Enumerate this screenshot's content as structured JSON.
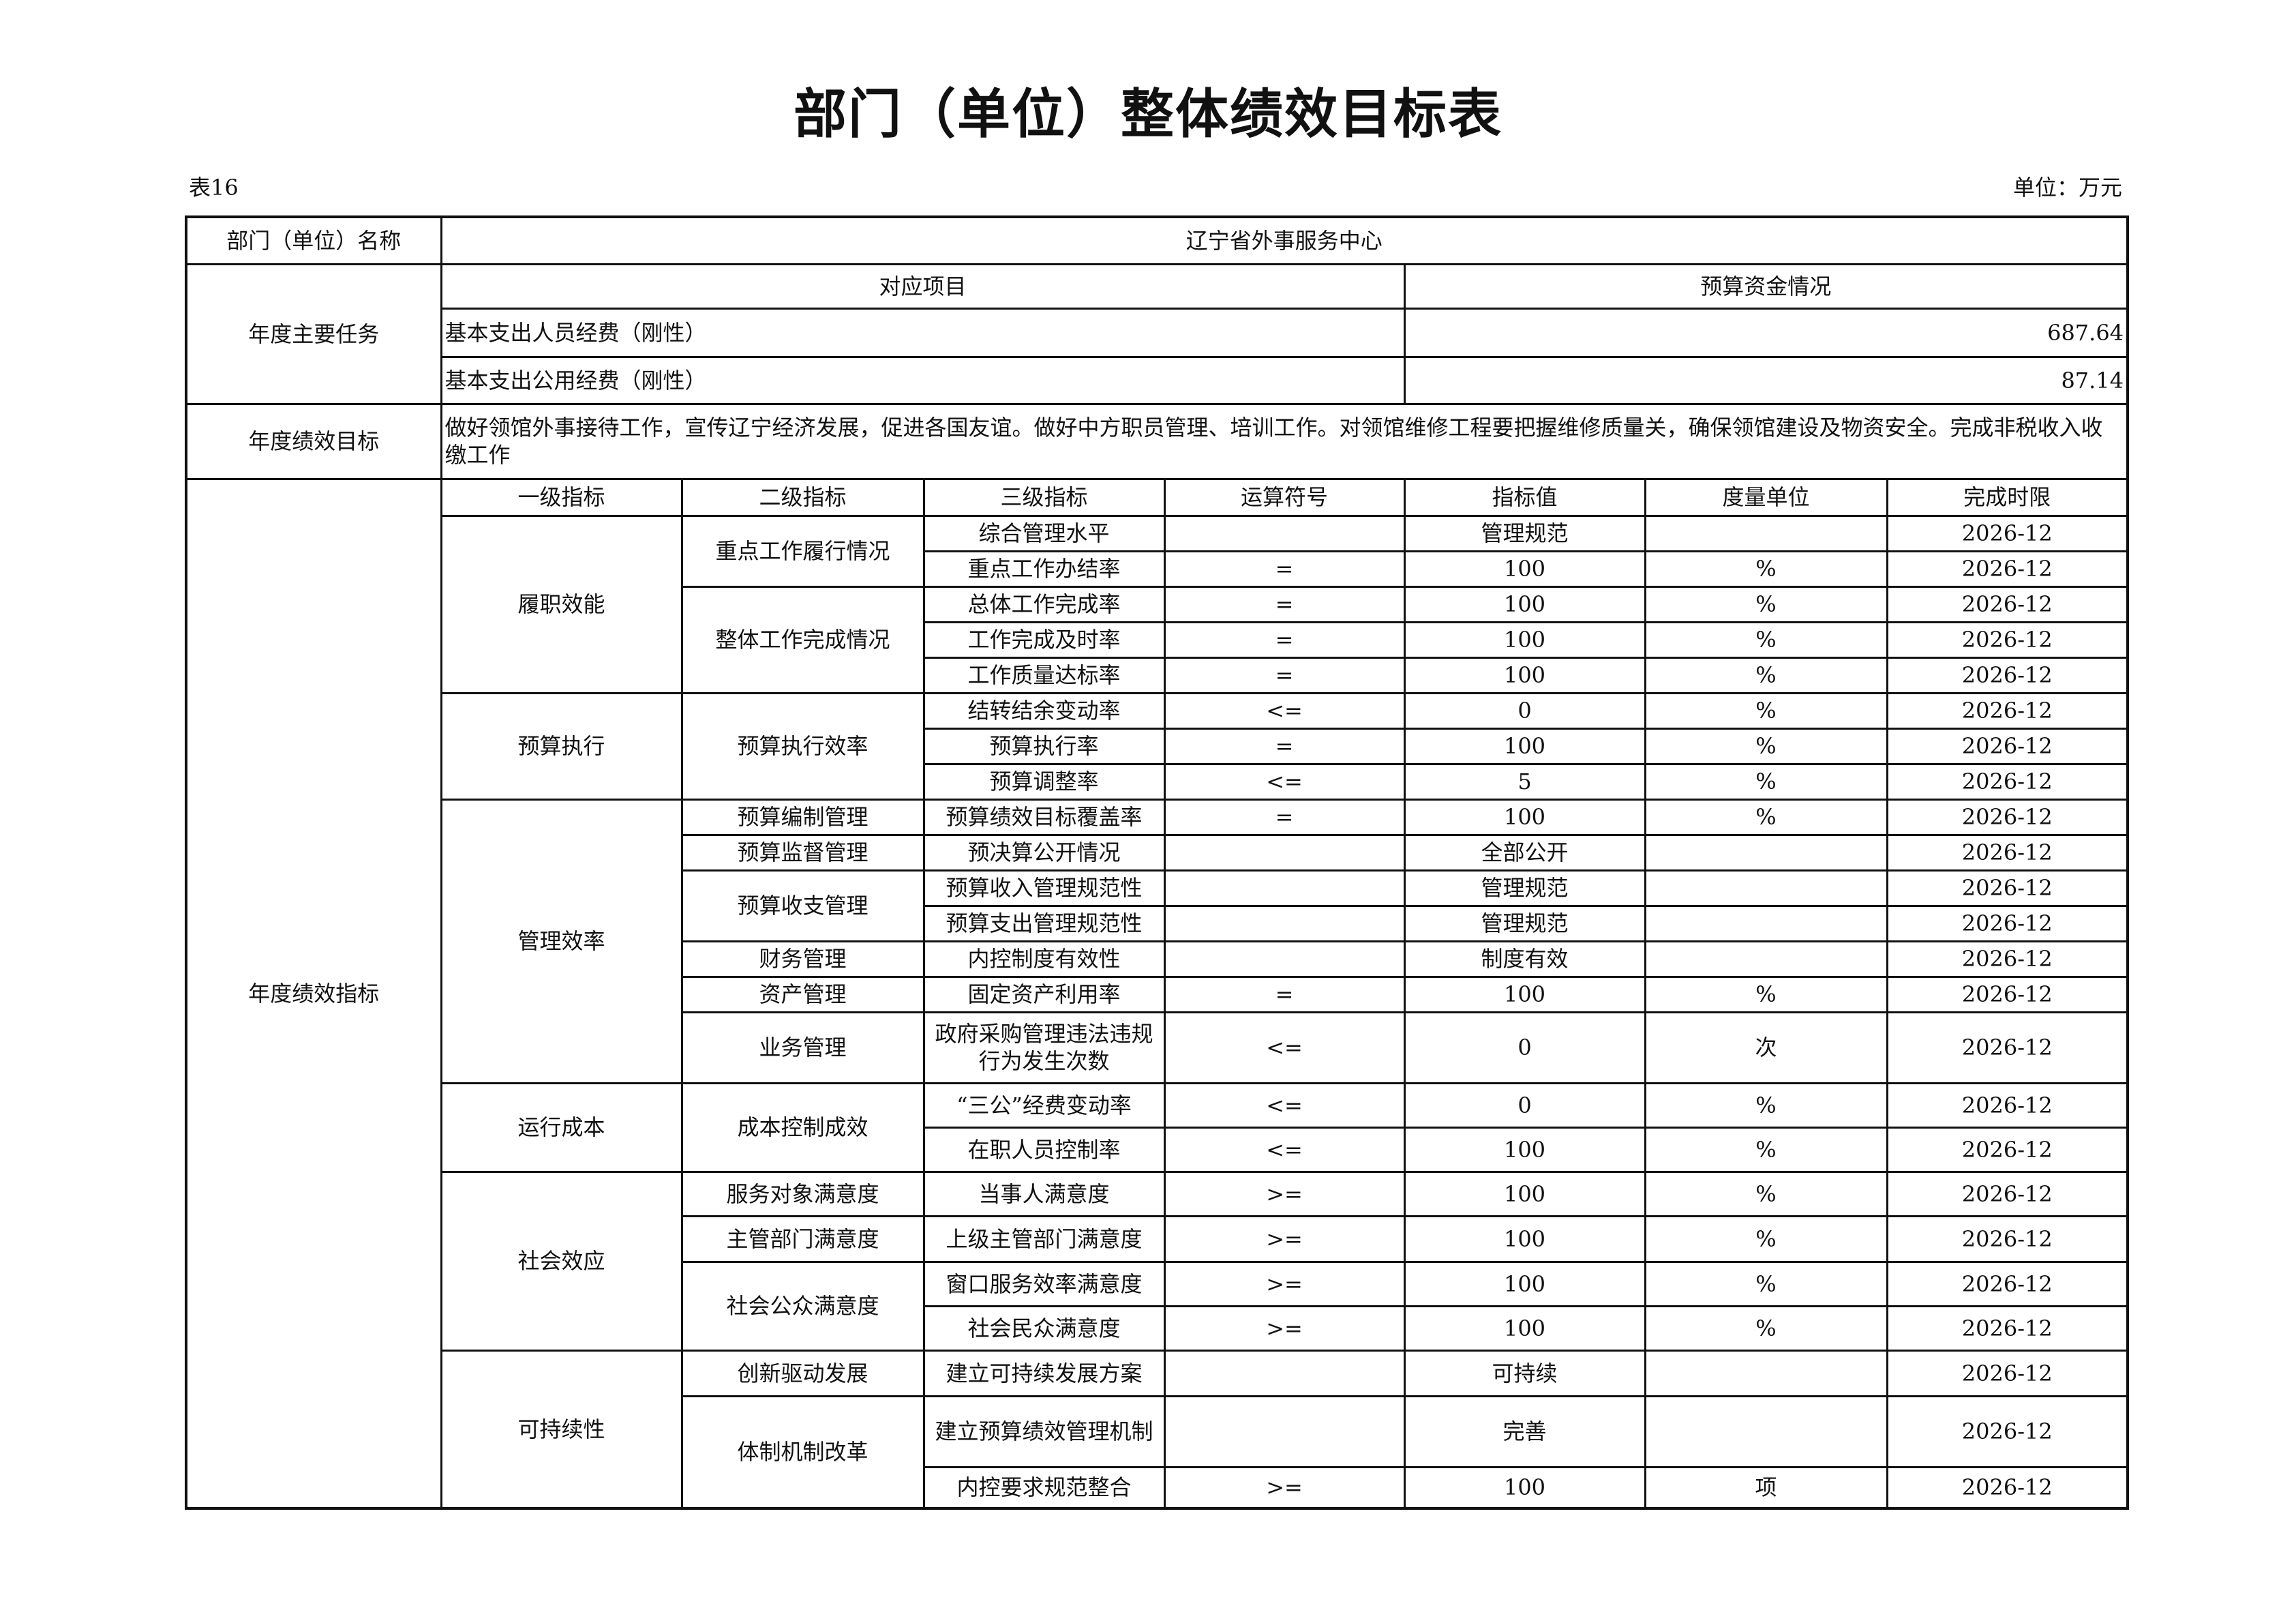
{
  "title": "部门（单位）整体绩效目标表",
  "table_no": "表16",
  "unit_label": "单位：万元",
  "dept": {
    "label": "部门（单位）名称",
    "value": "辽宁省外事服务中心"
  },
  "tasks": {
    "label": "年度主要任务",
    "col_project": "对应项目",
    "col_budget": "预算资金情况",
    "items": [
      {
        "project": "基本支出人员经费（刚性）",
        "budget": "687.64"
      },
      {
        "project": "基本支出公用经费（刚性）",
        "budget": "87.14"
      }
    ]
  },
  "goal": {
    "label": "年度绩效目标",
    "text": "做好领馆外事接待工作，宣传辽宁经济发展，促进各国友谊。做好中方职员管理、培训工作。对领馆维修工程要把握维修质量关，确保领馆建设及物资安全。完成非税收入收缴工作"
  },
  "indicators": {
    "label": "年度绩效指标",
    "headers": [
      "一级指标",
      "二级指标",
      "三级指标",
      "运算符号",
      "指标值",
      "度量单位",
      "完成时限"
    ],
    "groups": [
      {
        "name": "履职效能",
        "children": [
          {
            "name": "重点工作履行情况",
            "items": [
              {
                "name": "综合管理水平",
                "op": "",
                "value": "管理规范",
                "unit": "",
                "deadline": "2026-12"
              },
              {
                "name": "重点工作办结率",
                "op": "=",
                "value": "100",
                "unit": "%",
                "deadline": "2026-12"
              }
            ]
          },
          {
            "name": "整体工作完成情况",
            "items": [
              {
                "name": "总体工作完成率",
                "op": "=",
                "value": "100",
                "unit": "%",
                "deadline": "2026-12"
              },
              {
                "name": "工作完成及时率",
                "op": "=",
                "value": "100",
                "unit": "%",
                "deadline": "2026-12"
              },
              {
                "name": "工作质量达标率",
                "op": "=",
                "value": "100",
                "unit": "%",
                "deadline": "2026-12"
              }
            ]
          }
        ]
      },
      {
        "name": "预算执行",
        "children": [
          {
            "name": "预算执行效率",
            "items": [
              {
                "name": "结转结余变动率",
                "op": "<=",
                "value": "0",
                "unit": "%",
                "deadline": "2026-12"
              },
              {
                "name": "预算执行率",
                "op": "=",
                "value": "100",
                "unit": "%",
                "deadline": "2026-12"
              },
              {
                "name": "预算调整率",
                "op": "<=",
                "value": "5",
                "unit": "%",
                "deadline": "2026-12"
              }
            ]
          }
        ]
      },
      {
        "name": "管理效率",
        "children": [
          {
            "name": "预算编制管理",
            "items": [
              {
                "name": "预算绩效目标覆盖率",
                "op": "=",
                "value": "100",
                "unit": "%",
                "deadline": "2026-12"
              }
            ]
          },
          {
            "name": "预算监督管理",
            "items": [
              {
                "name": "预决算公开情况",
                "op": "",
                "value": "全部公开",
                "unit": "",
                "deadline": "2026-12"
              }
            ]
          },
          {
            "name": "预算收支管理",
            "items": [
              {
                "name": "预算收入管理规范性",
                "op": "",
                "value": "管理规范",
                "unit": "",
                "deadline": "2026-12"
              },
              {
                "name": "预算支出管理规范性",
                "op": "",
                "value": "管理规范",
                "unit": "",
                "deadline": "2026-12"
              }
            ]
          },
          {
            "name": "财务管理",
            "items": [
              {
                "name": "内控制度有效性",
                "op": "",
                "value": "制度有效",
                "unit": "",
                "deadline": "2026-12"
              }
            ]
          },
          {
            "name": "资产管理",
            "items": [
              {
                "name": "固定资产利用率",
                "op": "=",
                "value": "100",
                "unit": "%",
                "deadline": "2026-12"
              }
            ]
          },
          {
            "name": "业务管理",
            "items": [
              {
                "name": "政府采购管理违法违规行为发生次数",
                "op": "<=",
                "value": "0",
                "unit": "次",
                "deadline": "2026-12"
              }
            ]
          }
        ]
      },
      {
        "name": "运行成本",
        "children": [
          {
            "name": "成本控制成效",
            "items": [
              {
                "name": "“三公”经费变动率",
                "op": "<=",
                "value": "0",
                "unit": "%",
                "deadline": "2026-12"
              },
              {
                "name": "在职人员控制率",
                "op": "<=",
                "value": "100",
                "unit": "%",
                "deadline": "2026-12"
              }
            ]
          }
        ]
      },
      {
        "name": "社会效应",
        "children": [
          {
            "name": "服务对象满意度",
            "items": [
              {
                "name": "当事人满意度",
                "op": ">=",
                "value": "100",
                "unit": "%",
                "deadline": "2026-12"
              }
            ]
          },
          {
            "name": "主管部门满意度",
            "items": [
              {
                "name": "上级主管部门满意度",
                "op": ">=",
                "value": "100",
                "unit": "%",
                "deadline": "2026-12"
              }
            ]
          },
          {
            "name": "社会公众满意度",
            "items": [
              {
                "name": "窗口服务效率满意度",
                "op": ">=",
                "value": "100",
                "unit": "%",
                "deadline": "2026-12"
              },
              {
                "name": "社会民众满意度",
                "op": ">=",
                "value": "100",
                "unit": "%",
                "deadline": "2026-12"
              }
            ]
          }
        ]
      },
      {
        "name": "可持续性",
        "children": [
          {
            "name": "创新驱动发展",
            "items": [
              {
                "name": "建立可持续发展方案",
                "op": "",
                "value": "可持续",
                "unit": "",
                "deadline": "2026-12"
              }
            ]
          },
          {
            "name": "体制机制改革",
            "items": [
              {
                "name": "建立预算绩效管理机制",
                "op": "",
                "value": "完善",
                "unit": "",
                "deadline": "2026-12"
              },
              {
                "name": "内控要求规范整合",
                "op": ">=",
                "value": "100",
                "unit": "项",
                "deadline": "2026-12"
              }
            ]
          }
        ]
      }
    ]
  }
}
